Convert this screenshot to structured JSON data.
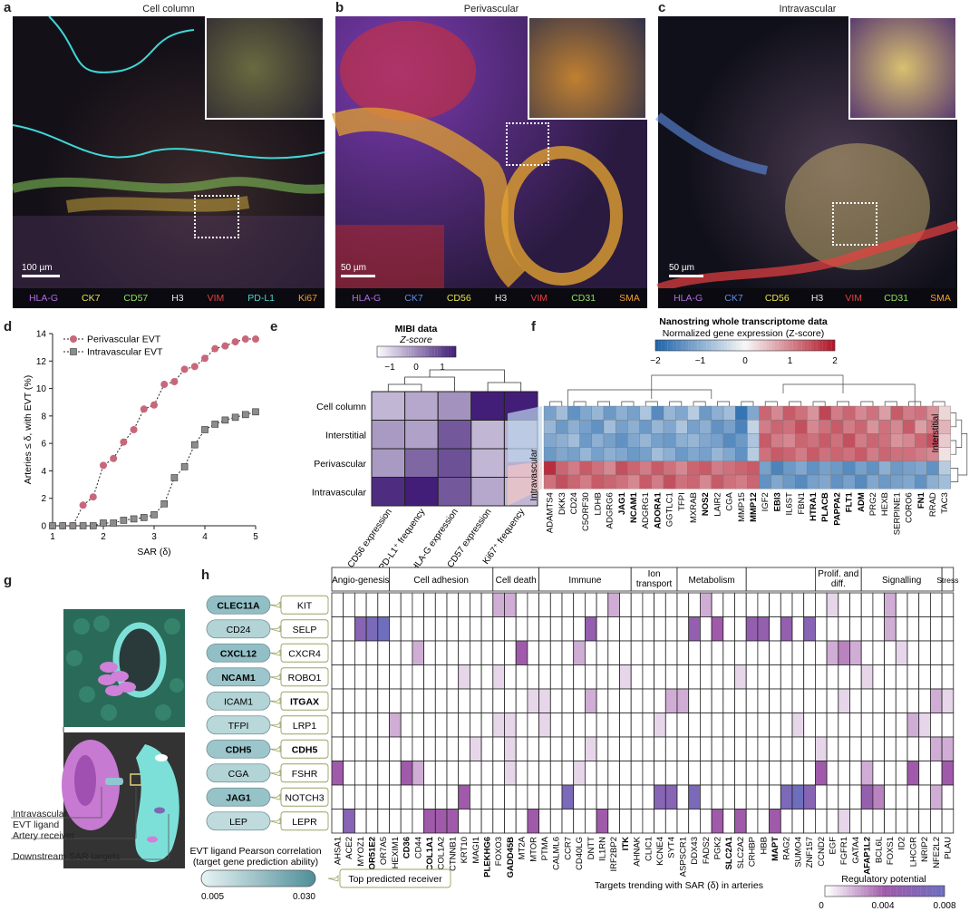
{
  "panels": {
    "a": {
      "label": "a",
      "title": "Cell column",
      "scale": "100 µm",
      "legend": [
        {
          "name": "HLA-G",
          "color": "#b06ee0"
        },
        {
          "name": "CK7",
          "color": "#e6e34a"
        },
        {
          "name": "CD57",
          "color": "#8fe060"
        },
        {
          "name": "H3",
          "color": "#e8e8e8"
        },
        {
          "name": "VIM",
          "color": "#e84040"
        },
        {
          "name": "PD-L1",
          "color": "#4ad6d0"
        },
        {
          "name": "Ki67",
          "color": "#f0a030"
        }
      ]
    },
    "b": {
      "label": "b",
      "title": "Perivascular",
      "scale": "50 µm",
      "legend": [
        {
          "name": "HLA-G",
          "color": "#b06ee0"
        },
        {
          "name": "CK7",
          "color": "#5f8fe8"
        },
        {
          "name": "CD56",
          "color": "#e6e34a"
        },
        {
          "name": "H3",
          "color": "#e8e8e8"
        },
        {
          "name": "VIM",
          "color": "#e84040"
        },
        {
          "name": "CD31",
          "color": "#8fe060"
        },
        {
          "name": "SMA",
          "color": "#f0a030"
        }
      ]
    },
    "c": {
      "label": "c",
      "title": "Intravascular",
      "scale": "50 µm",
      "legend": [
        {
          "name": "HLA-G",
          "color": "#b06ee0"
        },
        {
          "name": "CK7",
          "color": "#5f8fe8"
        },
        {
          "name": "CD56",
          "color": "#e6e34a"
        },
        {
          "name": "H3",
          "color": "#e8e8e8"
        },
        {
          "name": "VIM",
          "color": "#e84040"
        },
        {
          "name": "CD31",
          "color": "#8fe060"
        },
        {
          "name": "SMA",
          "color": "#f0a030"
        }
      ]
    },
    "d": {
      "label": "d"
    },
    "e": {
      "label": "e",
      "legend_title": "MIBI data",
      "legend_sub": "Z-score",
      "ticks": [
        "−1",
        "0",
        "1"
      ]
    },
    "f": {
      "label": "f",
      "legend_title": "Nanostring whole transcriptome data",
      "legend_sub": "Normalized gene expression (Z-score)",
      "ticks": [
        "−2",
        "−1",
        "0",
        "1",
        "2"
      ],
      "row_labels": [
        "Interstitial",
        "Intravascular"
      ]
    },
    "g": {
      "label": "g",
      "annotations": [
        "Intravascular",
        "EVT ligand",
        "Artery receiver",
        "Downstream SAR targets"
      ]
    },
    "h": {
      "label": "h"
    }
  },
  "chart_data": [
    {
      "type": "line",
      "panel": "d",
      "xlabel": "SAR (δ)",
      "ylabel": "Arteries ≤ δ, with EVT (%)",
      "xlim": [
        1,
        5
      ],
      "ylim": [
        0,
        14
      ],
      "xticks": [
        1,
        2,
        3,
        4,
        5
      ],
      "yticks": [
        0,
        2,
        4,
        6,
        8,
        10,
        12,
        14
      ],
      "legend_position": "top-left",
      "grid": false,
      "series": [
        {
          "name": "Perivascular EVT",
          "marker": "circle",
          "color": "#c9677a",
          "x": [
            1.0,
            1.2,
            1.4,
            1.6,
            1.8,
            2.0,
            2.2,
            2.4,
            2.6,
            2.8,
            3.0,
            3.2,
            3.4,
            3.6,
            3.8,
            4.0,
            4.2,
            4.4,
            4.6,
            4.8,
            5.0
          ],
          "y": [
            0,
            0,
            0,
            1.5,
            2.1,
            4.4,
            4.9,
            6.1,
            7.0,
            8.5,
            8.8,
            10.3,
            10.5,
            11.4,
            11.6,
            12.2,
            12.9,
            13.1,
            13.4,
            13.6,
            13.6
          ]
        },
        {
          "name": "Intravascular EVT",
          "marker": "square",
          "color": "#8c8c8c",
          "x": [
            1.0,
            1.2,
            1.4,
            1.6,
            1.8,
            2.0,
            2.2,
            2.4,
            2.6,
            2.8,
            3.0,
            3.2,
            3.4,
            3.6,
            3.8,
            4.0,
            4.2,
            4.4,
            4.6,
            4.8,
            5.0
          ],
          "y": [
            0,
            0,
            0,
            0,
            0,
            0.2,
            0.2,
            0.4,
            0.5,
            0.6,
            0.8,
            1.6,
            3.5,
            4.3,
            5.9,
            7.0,
            7.4,
            7.7,
            7.9,
            8.1,
            8.3
          ]
        }
      ]
    },
    {
      "type": "heatmap",
      "panel": "e",
      "rows": [
        "Cell column",
        "Interstitial",
        "Perivascular",
        "Intravascular"
      ],
      "columns": [
        "CD56 expression",
        "PD-L1⁺ frequency",
        "HLA-G expression",
        "CD57 expression",
        "Ki67⁺ frequency"
      ],
      "values": [
        [
          -0.6,
          -0.4,
          -0.1,
          1.5,
          1.5
        ],
        [
          -0.2,
          -0.3,
          0.7,
          -0.6,
          -0.5
        ],
        [
          -0.2,
          0.5,
          0.8,
          -0.6,
          -0.5
        ],
        [
          1.3,
          1.5,
          0.7,
          -0.4,
          -0.6
        ]
      ],
      "colorscale": "white-purple",
      "zlim": [
        -1.5,
        1.5
      ]
    },
    {
      "type": "heatmap",
      "panel": "f",
      "columns": [
        "ADAMTS4",
        "DKK3",
        "CD24",
        "C5ORF30",
        "LDHB",
        "ADGRG6",
        "JAG1",
        "NCAM1",
        "ADGRG1",
        "ADORA1",
        "GGTLC1",
        "TFPI",
        "MXRAB",
        "NOS2",
        "LAIR2",
        "CGA",
        "MMP15",
        "MMP12",
        "IGF2",
        "EBI3",
        "IL6ST",
        "FBN1",
        "HTRA1",
        "PLACB",
        "PAPPA2",
        "FLT1",
        "ADM",
        "PRG2",
        "HEXB",
        "SERPINE1",
        "CORO6",
        "FN1",
        "RRAD",
        "TAC3"
      ],
      "bold_columns": [
        "JAG1",
        "NCAM1",
        "ADORA1",
        "NOS2",
        "MMP12",
        "EBI3",
        "HTRA1",
        "PLACB",
        "PAPPA2",
        "FLT1",
        "ADM",
        "FN1"
      ],
      "colorscale": "blue-white-red",
      "zlim": [
        -2,
        2
      ]
    },
    {
      "type": "heatmap",
      "panel": "h",
      "ligands": [
        "CLEC11A",
        "CD24",
        "CXCL12",
        "NCAM1",
        "ICAM1",
        "TFPI",
        "CDH5",
        "CGA",
        "JAG1",
        "LEP"
      ],
      "bold_ligands": [
        "CLEC11A",
        "CXCL12",
        "NCAM1",
        "CDH5",
        "JAG1"
      ],
      "receivers": [
        "KIT",
        "SELP",
        "CXCR4",
        "ROBO1",
        "ITGAX",
        "LRP1",
        "CDH5",
        "FSHR",
        "NOTCH3",
        "LEPR"
      ],
      "bold_receivers": [
        "ITGAX",
        "CDH5"
      ],
      "targets": [
        "AHSA1",
        "ACE2",
        "MYOZ1",
        "OR51E2",
        "OR7A5",
        "HEXIM1",
        "CD36",
        "CD44",
        "COL1A1",
        "COL1A2",
        "CTNNB1",
        "KRT10",
        "MAGI1",
        "PLEKHG6",
        "FOXO3",
        "GADD45B",
        "MT2A",
        "MTOR",
        "PTMA",
        "CALML6",
        "CCR7",
        "CD40LG",
        "DNTT",
        "IL1RN",
        "IRF2BP2",
        "ITK",
        "AHNAK",
        "CLIC1",
        "KCNE4",
        "SYT4",
        "ASPSCR1",
        "DDX43",
        "FADS2",
        "PGK2",
        "SLC2A1",
        "SLC2A2",
        "CRHBP",
        "HBB",
        "MAPT",
        "RAG2",
        "SUMO4",
        "ZNF157",
        "CCND2",
        "EGF",
        "FGFR1",
        "GATA4",
        "AFAP1L2",
        "BCL6L",
        "FOXS1",
        "ID2",
        "LHCGR",
        "NRIP2",
        "NFE2L2",
        "PLAU"
      ],
      "bold_targets": [
        "OR51E2",
        "CD36",
        "COL1A1",
        "PLEKHG6",
        "GADD45B",
        "ITK",
        "SLC2A1",
        "MAPT",
        "AFAP1L2"
      ],
      "categories": [
        {
          "name": "Angio-genesis",
          "span": [
            0,
            4
          ]
        },
        {
          "name": "Cell adhesion",
          "span": [
            5,
            13
          ]
        },
        {
          "name": "Cell death",
          "span": [
            14,
            17
          ]
        },
        {
          "name": "Immune",
          "span": [
            18,
            25
          ]
        },
        {
          "name": "Ion transport",
          "span": [
            26,
            29
          ]
        },
        {
          "name": "Metabolism",
          "span": [
            30,
            35
          ]
        },
        {
          "name": "",
          "span": [
            36,
            41
          ]
        },
        {
          "name": "Prolif. and diff.",
          "span": [
            42,
            45
          ]
        },
        {
          "name": "Signalling",
          "span": [
            46,
            52
          ]
        },
        {
          "name": "Stress",
          "span": [
            53,
            53
          ]
        }
      ],
      "xlabel": "Targets trending with SAR (δ) in arteries",
      "colorbar": {
        "title": "Regulatory potential",
        "ticks": [
          "0",
          "0.004",
          "0.008"
        ]
      },
      "ligand_colorbar": {
        "title": "EVT ligand Pearson correlation",
        "subtitle": "(target gene prediction ability)",
        "ticks": [
          "0.005",
          "0.030"
        ]
      },
      "receiver_legend": "Top predicted receiver"
    }
  ]
}
